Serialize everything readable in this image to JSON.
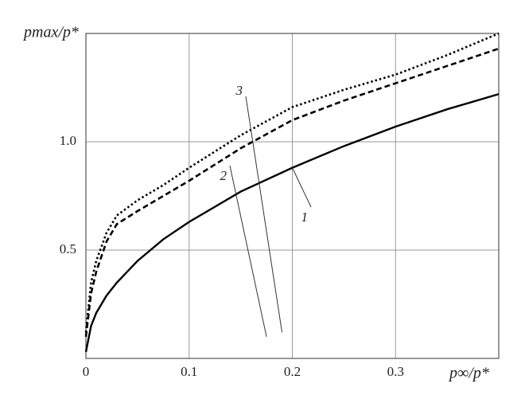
{
  "chart_data": {
    "type": "line",
    "y_label": "pmax/p*",
    "x_label": "p∞/p*",
    "x": [
      0,
      0.005,
      0.01,
      0.02,
      0.03,
      0.05,
      0.075,
      0.1,
      0.15,
      0.2,
      0.25,
      0.3,
      0.35,
      0.4
    ],
    "series": [
      {
        "name": "1",
        "color": "#000000",
        "style": "solid",
        "values": [
          0.03,
          0.15,
          0.21,
          0.29,
          0.35,
          0.45,
          0.55,
          0.63,
          0.77,
          0.88,
          0.98,
          1.07,
          1.15,
          1.22
        ]
      },
      {
        "name": "2",
        "color": "#000000",
        "style": "dashed",
        "values": [
          0.1,
          0.3,
          0.4,
          0.54,
          0.62,
          0.68,
          0.75,
          0.82,
          0.97,
          1.1,
          1.19,
          1.27,
          1.35,
          1.43
        ]
      },
      {
        "name": "3",
        "color": "#000000",
        "style": "dotted",
        "values": [
          0.12,
          0.35,
          0.45,
          0.58,
          0.66,
          0.73,
          0.8,
          0.88,
          1.03,
          1.16,
          1.24,
          1.31,
          1.4,
          1.5
        ]
      }
    ],
    "xlim": [
      0,
      0.4
    ],
    "ylim": [
      0,
      1.5
    ],
    "xticks": [
      0,
      0.1,
      0.2,
      0.3
    ],
    "yticks": [
      0.5,
      {
        "value": 1,
        "label": "1.0"
      }
    ],
    "grid": true
  }
}
